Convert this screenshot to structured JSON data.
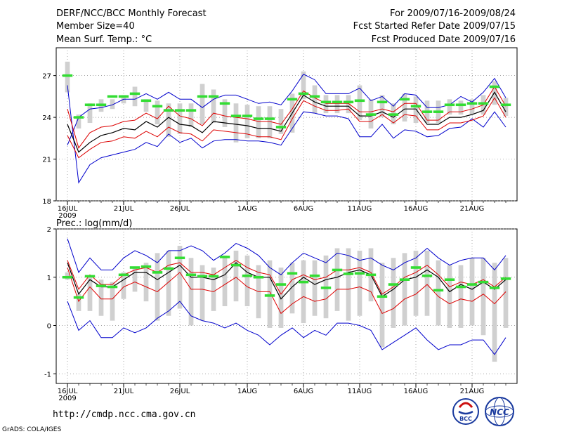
{
  "header": {
    "left": [
      "DERF/NCC/BCC Monthly Forecast",
      "Member Size=40",
      "Mean Surf. Temp.: °C"
    ],
    "right": [
      "For 2009/07/16-2009/08/24",
      "Fcst Started Refer Date 2009/07/15",
      "Fcst Produced Date 2009/07/16"
    ]
  },
  "footer": {
    "url": "http://cmdp.ncc.cma.gov.cn",
    "grads": "GrADS: COLA/IGES",
    "logo1": "BCC",
    "logo2": "NCC"
  },
  "colors": {
    "box": "#d0d0d0",
    "observed": "#33dd33",
    "envelope": "#0000cc",
    "spread": "#dd0000",
    "mean": "#000000",
    "grid": "#888888"
  },
  "chart_data": [
    {
      "type": "line",
      "title": "Mean Surf. Temp.: °C",
      "xlabel": "",
      "ylabel": "°C",
      "ylim": [
        18,
        29
      ],
      "yticks": [
        "18",
        "21",
        "24",
        "27"
      ],
      "yticks_values": [
        18,
        21,
        24,
        27
      ],
      "x_days": 40,
      "x_tick_labels": [
        "16JUL",
        "21JUL",
        "26JUL",
        "1AUG",
        "6AUG",
        "11AUG",
        "16AUG",
        "21AUG"
      ],
      "x_tick_days": [
        1,
        6,
        11,
        17,
        22,
        27,
        32,
        37
      ],
      "year_label": "2009",
      "series": [
        {
          "name": "max",
          "values": [
            26.3,
            19.3,
            20.6,
            21.1,
            21.3,
            21.5,
            21.7,
            22.2,
            21.9,
            22.8,
            22.2,
            22.5,
            21.8,
            22.3,
            22.4,
            22.4,
            22.3,
            22.3,
            22.2,
            22.0,
            23.2,
            24.4,
            24.3,
            24.1,
            24.1,
            23.9,
            22.6,
            22.6,
            23.5,
            22.5,
            23.1,
            23.0,
            22.6,
            22.7,
            23.2,
            23.3,
            23.9,
            23.3,
            24.4,
            23.3
          ]
        },
        {
          "name": "min",
          "values": [
            22.0,
            24.0,
            24.6,
            24.7,
            24.9,
            25.3,
            25.3,
            25.7,
            25.3,
            25.8,
            25.3,
            25.3,
            24.7,
            25.3,
            25.6,
            25.6,
            25.3,
            25.0,
            25.1,
            24.9,
            25.9,
            27.1,
            26.7,
            25.7,
            25.7,
            25.7,
            26.1,
            25.2,
            25.5,
            24.8,
            25.7,
            25.6,
            24.7,
            24.7,
            24.9,
            25.5,
            25.1,
            25.8,
            26.8,
            25.4
          ]
        },
        {
          "name": "spread_upper",
          "values": [
            24.6,
            21.8,
            22.9,
            23.3,
            23.4,
            23.7,
            23.8,
            24.3,
            23.9,
            24.8,
            24.1,
            23.9,
            23.4,
            24.3,
            24.1,
            24.0,
            23.9,
            23.7,
            23.7,
            23.5,
            24.6,
            25.9,
            25.4,
            25.0,
            25.0,
            25.0,
            24.4,
            24.4,
            24.6,
            24.4,
            25.0,
            25.0,
            23.8,
            23.8,
            24.4,
            24.4,
            24.6,
            24.9,
            26.2,
            24.8
          ]
        },
        {
          "name": "spread_lower",
          "values": [
            22.7,
            21.1,
            21.7,
            22.2,
            22.3,
            22.6,
            22.5,
            23.0,
            22.6,
            23.3,
            22.9,
            22.8,
            22.3,
            23.1,
            23.0,
            22.9,
            22.8,
            22.6,
            22.6,
            22.4,
            23.9,
            25.2,
            24.8,
            24.5,
            24.5,
            24.6,
            23.7,
            23.7,
            24.2,
            23.6,
            24.2,
            24.1,
            23.1,
            23.1,
            23.6,
            23.6,
            23.8,
            24.1,
            25.4,
            24.0
          ]
        },
        {
          "name": "ensemble_mean",
          "values": [
            23.5,
            21.5,
            22.2,
            22.7,
            22.9,
            23.2,
            23.1,
            23.7,
            23.3,
            24.0,
            23.5,
            23.4,
            22.9,
            23.7,
            23.6,
            23.5,
            23.4,
            23.2,
            23.2,
            23.0,
            24.3,
            25.6,
            25.1,
            24.8,
            24.8,
            24.8,
            24.1,
            24.1,
            24.4,
            24.0,
            24.6,
            24.6,
            23.5,
            23.5,
            24.0,
            24.0,
            24.2,
            24.5,
            25.8,
            24.4
          ]
        },
        {
          "name": "observed",
          "values": [
            27.0,
            24.0,
            24.9,
            24.9,
            25.5,
            25.5,
            25.7,
            25.2,
            24.8,
            24.5,
            24.5,
            24.5,
            25.5,
            25.5,
            25.0,
            24.1,
            24.1,
            23.9,
            23.9,
            23.3,
            25.3,
            25.7,
            25.5,
            25.1,
            25.1,
            25.1,
            25.2,
            24.2,
            25.1,
            24.2,
            25.3,
            24.8,
            24.4,
            24.4,
            24.9,
            24.9,
            25.0,
            25.0,
            26.2,
            24.9
          ]
        },
        {
          "name": "box_top",
          "values": [
            28.0,
            24.2,
            25.0,
            25.3,
            25.3,
            25.6,
            26.2,
            25.3,
            25.2,
            25.0,
            25.0,
            25.0,
            26.4,
            26.0,
            25.3,
            25.0,
            24.9,
            24.8,
            24.8,
            24.6,
            25.7,
            27.3,
            26.3,
            25.6,
            25.6,
            25.6,
            26.3,
            25.3,
            25.6,
            25.0,
            25.7,
            25.5,
            25.2,
            25.2,
            25.3,
            25.2,
            25.3,
            25.6,
            26.6,
            25.4
          ]
        },
        {
          "name": "box_bottom",
          "values": [
            25.8,
            23.2,
            23.6,
            24.4,
            24.6,
            25.0,
            24.8,
            24.4,
            23.5,
            22.6,
            22.8,
            23.3,
            23.5,
            23.6,
            23.3,
            22.2,
            22.5,
            22.5,
            22.5,
            22.8,
            22.9,
            25.3,
            24.3,
            24.3,
            24.3,
            24.3,
            23.8,
            23.2,
            24.0,
            23.5,
            23.7,
            23.6,
            23.6,
            23.6,
            24.2,
            24.2,
            24.2,
            24.2,
            24.9,
            24.1
          ]
        }
      ]
    },
    {
      "type": "line",
      "title": "Prec.: log(mm/d)",
      "xlabel": "",
      "ylabel": "log(mm/d)",
      "ylim": [
        -1.2,
        2.0
      ],
      "yticks": [
        "-1",
        "0",
        "1",
        "2"
      ],
      "yticks_values": [
        -1,
        0,
        1,
        2
      ],
      "x_days": 40,
      "x_tick_labels": [
        "16JUL",
        "21JUL",
        "26JUL",
        "1AUG",
        "6AUG",
        "11AUG",
        "16AUG",
        "21AUG"
      ],
      "x_tick_days": [
        1,
        6,
        11,
        17,
        22,
        27,
        32,
        37
      ],
      "year_label": "2009",
      "series": [
        {
          "name": "max",
          "values": [
            1.8,
            1.1,
            1.4,
            1.15,
            1.15,
            1.4,
            1.55,
            1.45,
            1.3,
            1.55,
            1.55,
            1.65,
            1.55,
            1.35,
            1.5,
            1.7,
            1.6,
            1.45,
            1.2,
            1.05,
            1.3,
            1.5,
            1.4,
            1.3,
            1.5,
            1.45,
            1.35,
            1.4,
            1.25,
            1.15,
            1.3,
            1.4,
            1.6,
            1.4,
            1.25,
            1.35,
            1.4,
            1.4,
            1.15,
            1.45
          ]
        },
        {
          "name": "min",
          "values": [
            0.5,
            -0.1,
            0.1,
            -0.25,
            -0.25,
            -0.05,
            -0.15,
            -0.05,
            0.15,
            0.3,
            0.5,
            0.2,
            0.1,
            0.05,
            -0.05,
            0.05,
            -0.1,
            -0.2,
            -0.4,
            -0.2,
            -0.05,
            -0.25,
            -0.1,
            -0.2,
            0.05,
            0.05,
            0.0,
            -0.1,
            -0.5,
            -0.35,
            -0.2,
            -0.05,
            -0.3,
            -0.5,
            -0.4,
            -0.4,
            -0.3,
            -0.3,
            -0.6,
            -0.25
          ]
        },
        {
          "name": "spread_upper",
          "values": [
            1.35,
            0.75,
            1.05,
            0.85,
            0.85,
            1.05,
            1.15,
            1.2,
            1.1,
            1.25,
            1.3,
            1.1,
            1.1,
            1.05,
            1.2,
            1.35,
            1.2,
            1.1,
            1.05,
            0.65,
            0.95,
            1.05,
            0.95,
            1.0,
            1.15,
            1.15,
            1.2,
            1.1,
            0.65,
            0.8,
            1.0,
            1.1,
            1.25,
            1.05,
            0.8,
            0.9,
            0.85,
            0.95,
            0.8,
            1.0
          ]
        },
        {
          "name": "spread_lower",
          "values": [
            1.2,
            0.5,
            0.8,
            0.55,
            0.55,
            0.8,
            0.9,
            0.8,
            0.7,
            0.9,
            1.1,
            0.75,
            0.75,
            0.7,
            0.85,
            1.0,
            0.8,
            0.7,
            0.7,
            0.25,
            0.45,
            0.6,
            0.5,
            0.55,
            0.75,
            0.75,
            0.8,
            0.7,
            0.25,
            0.35,
            0.55,
            0.65,
            0.85,
            0.6,
            0.45,
            0.55,
            0.5,
            0.65,
            0.45,
            0.7
          ]
        },
        {
          "name": "ensemble_mean",
          "values": [
            1.3,
            0.65,
            0.95,
            0.8,
            0.8,
            0.95,
            1.1,
            1.1,
            0.95,
            1.1,
            1.25,
            1.0,
            1.0,
            0.95,
            1.05,
            1.3,
            1.1,
            1.0,
            1.0,
            0.55,
            0.8,
            1.0,
            0.85,
            0.95,
            1.0,
            1.1,
            1.15,
            1.05,
            0.6,
            0.75,
            0.95,
            1.0,
            1.15,
            1.0,
            0.7,
            0.85,
            0.75,
            0.9,
            0.75,
            0.95
          ]
        },
        {
          "name": "observed",
          "values": [
            1.0,
            0.58,
            1.02,
            0.82,
            0.8,
            1.05,
            1.2,
            1.22,
            1.1,
            1.18,
            1.4,
            1.05,
            1.02,
            1.02,
            1.42,
            1.25,
            1.03,
            1.0,
            0.62,
            0.85,
            1.08,
            0.9,
            1.03,
            0.78,
            1.15,
            1.07,
            1.08,
            1.05,
            0.6,
            0.85,
            0.95,
            1.2,
            1.03,
            0.73,
            0.95,
            0.8,
            0.85,
            0.9,
            0.78,
            0.97
          ]
        },
        {
          "name": "box_top",
          "values": [
            1.1,
            0.65,
            1.0,
            0.95,
            0.9,
            1.1,
            1.2,
            1.3,
            1.5,
            1.55,
            1.65,
            1.4,
            1.25,
            1.2,
            1.45,
            1.55,
            1.45,
            1.25,
            1.35,
            1.2,
            1.3,
            1.35,
            1.35,
            1.45,
            1.6,
            1.6,
            1.55,
            1.6,
            1.3,
            1.4,
            1.5,
            1.55,
            1.55,
            1.35,
            1.25,
            1.25,
            1.4,
            1.4,
            1.3,
            1.4
          ]
        },
        {
          "name": "box_bottom",
          "values": [
            0.95,
            0.3,
            0.3,
            0.2,
            0.1,
            0.55,
            0.7,
            0.5,
            0.1,
            0.2,
            0.35,
            0.0,
            0.1,
            0.3,
            0.4,
            0.5,
            0.4,
            0.15,
            -0.05,
            -0.05,
            0.25,
            0.05,
            0.2,
            0.15,
            0.3,
            0.1,
            0.2,
            0.5,
            -0.45,
            -0.05,
            0.0,
            0.2,
            0.2,
            0.0,
            -0.05,
            -0.05,
            0.0,
            -0.2,
            -0.75,
            -0.05
          ]
        }
      ]
    }
  ]
}
